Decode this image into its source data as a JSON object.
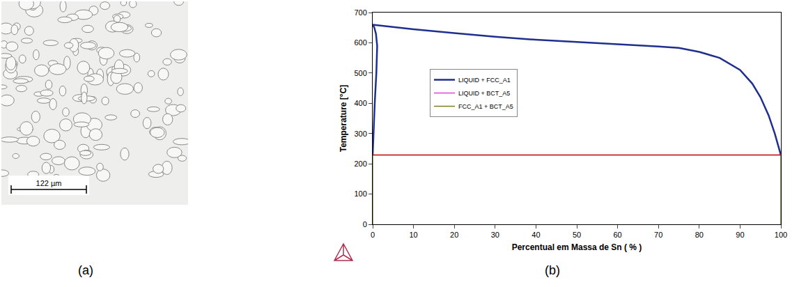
{
  "panel_a": {
    "caption": "(a)",
    "scale_bar_label": "122 µm"
  },
  "chart_data": {
    "type": "line",
    "caption": "(b)",
    "x_label": "Percentual em Massa de Sn ( % )",
    "y_label": "Temperature [°C]",
    "xlim": [
      0,
      100
    ],
    "ylim": [
      0,
      700
    ],
    "xticks": [
      0,
      10,
      20,
      30,
      40,
      50,
      60,
      70,
      80,
      90,
      100
    ],
    "yticks": [
      0,
      100,
      200,
      300,
      400,
      500,
      600,
      700
    ],
    "grid": false,
    "legend": "center left",
    "series": [
      {
        "name": "LIQUID + FCC_A1",
        "color": "#1f2f8f",
        "line_style": "solid",
        "x": [
          0,
          0.2,
          0.5,
          0.9,
          1.1,
          0.8,
          0.4,
          0,
          5,
          10,
          20,
          30,
          40,
          50,
          60,
          70,
          75,
          80,
          85,
          90,
          93,
          95,
          97,
          98.5,
          99.5,
          100
        ],
        "values": [
          228,
          300,
          400,
          500,
          590,
          630,
          650,
          660,
          652,
          645,
          632,
          620,
          610,
          602,
          595,
          588,
          583,
          570,
          550,
          510,
          465,
          420,
          360,
          300,
          250,
          229
        ]
      },
      {
        "name": "LIQUID + BCT_A5",
        "color": "#e040e0",
        "line_style": "solid",
        "x": [
          99.5,
          100
        ],
        "values": [
          229,
          231
        ]
      },
      {
        "name": "FCC_A1 + BCT_A5",
        "color": "#7a7a20",
        "line_style": "solid",
        "x": [
          0,
          0,
          null,
          100,
          100
        ],
        "values": [
          0,
          228,
          null,
          0,
          228
        ]
      },
      {
        "color": "#c00000",
        "line_style": "solid",
        "x": [
          0,
          100
        ],
        "values": [
          229,
          229
        ]
      }
    ]
  }
}
